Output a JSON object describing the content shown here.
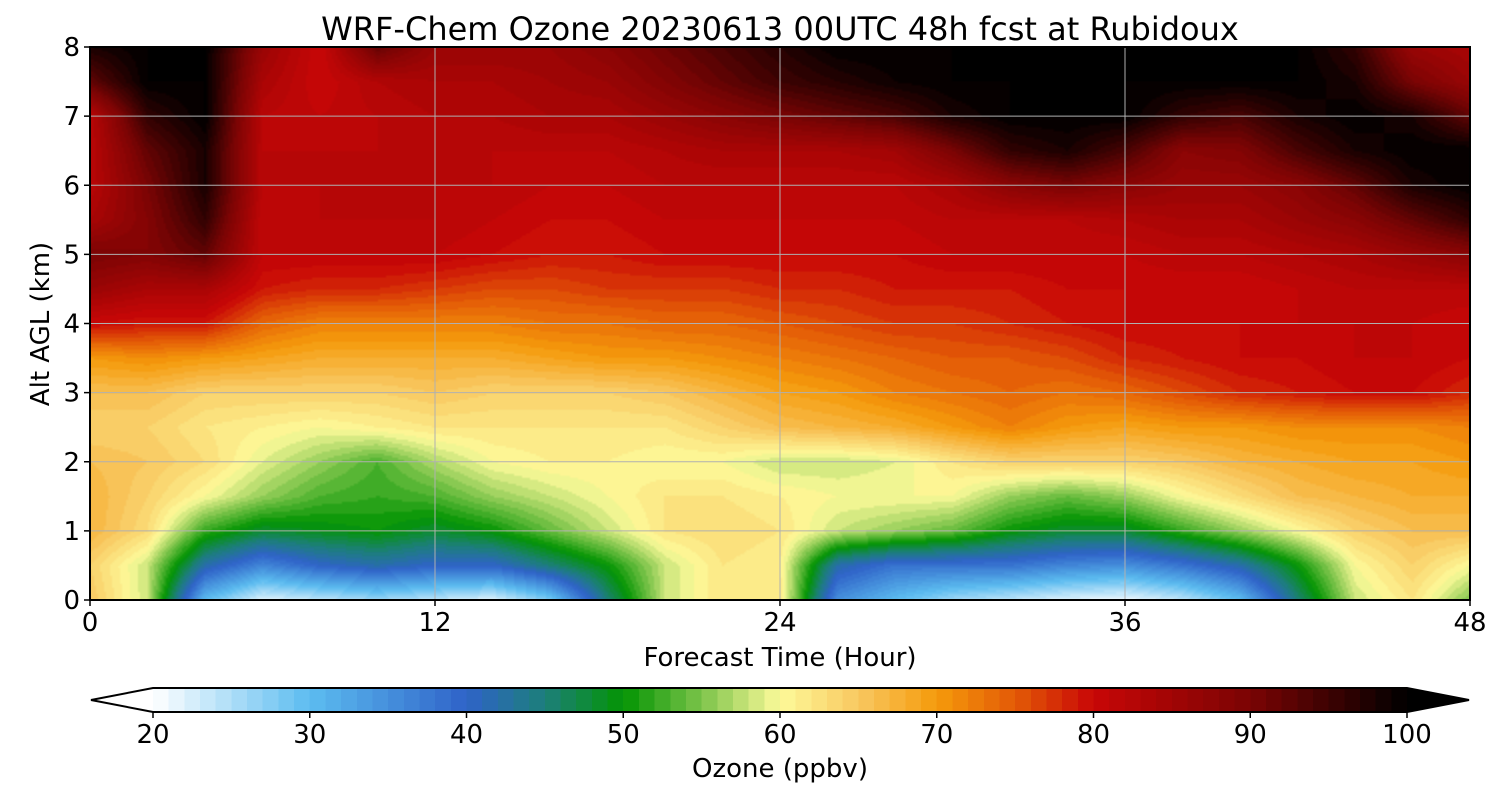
{
  "chart_data": {
    "type": "heatmap",
    "title": "WRF-Chem Ozone  20230613 00UTC 48h fcst at Rubidoux",
    "xlabel": "Forecast Time (Hour)",
    "ylabel": "Alt AGL (km)",
    "xlim": [
      0,
      48
    ],
    "ylim": [
      0,
      8
    ],
    "x_ticks": [
      "0",
      "12",
      "24",
      "36",
      "48"
    ],
    "y_ticks": [
      "0",
      "1",
      "2",
      "3",
      "4",
      "5",
      "6",
      "7",
      "8"
    ],
    "grid": true,
    "colorbar": {
      "label": "Ozone  (ppbv)",
      "range": [
        20,
        100
      ],
      "extend": "both",
      "ticks": [
        "20",
        "30",
        "40",
        "50",
        "60",
        "70",
        "80",
        "90",
        "100"
      ],
      "color_stops": [
        {
          "v": 20,
          "c": "#ffffff"
        },
        {
          "v": 30,
          "c": "#5cbcf0"
        },
        {
          "v": 40,
          "c": "#2f63c8"
        },
        {
          "v": 45,
          "c": "#1c7f7a"
        },
        {
          "v": 50,
          "c": "#039403"
        },
        {
          "v": 55,
          "c": "#7cc44a"
        },
        {
          "v": 60,
          "c": "#fdfa9a"
        },
        {
          "v": 65,
          "c": "#f8c860"
        },
        {
          "v": 70,
          "c": "#f59a0c"
        },
        {
          "v": 75,
          "c": "#e35a06"
        },
        {
          "v": 80,
          "c": "#c80606"
        },
        {
          "v": 90,
          "c": "#7a0404"
        },
        {
          "v": 100,
          "c": "#000000"
        }
      ]
    },
    "x_hours": [
      0,
      2,
      4,
      6,
      8,
      10,
      12,
      14,
      16,
      18,
      20,
      22,
      24,
      26,
      28,
      30,
      32,
      34,
      36,
      38,
      40,
      42,
      44,
      46,
      48
    ],
    "z_km": [
      0,
      0.5,
      1,
      1.5,
      2,
      2.5,
      3,
      3.5,
      4,
      4.5,
      5,
      5.5,
      6,
      6.5,
      7,
      7.5,
      8
    ],
    "values": [
      [
        65,
        58,
        30,
        22,
        24,
        26,
        24,
        22,
        28,
        45,
        58,
        62,
        62,
        35,
        30,
        26,
        24,
        22,
        21,
        24,
        30,
        45,
        58,
        62,
        55
      ],
      [
        64,
        58,
        42,
        36,
        40,
        42,
        40,
        40,
        45,
        50,
        58,
        62,
        61,
        42,
        38,
        38,
        38,
        36,
        35,
        38,
        42,
        50,
        60,
        64,
        60
      ],
      [
        67,
        63,
        52,
        48,
        49,
        50,
        48,
        50,
        54,
        58,
        62,
        63,
        62,
        58,
        56,
        54,
        50,
        48,
        48,
        52,
        56,
        60,
        64,
        66,
        66
      ],
      [
        67,
        64,
        60,
        56,
        53,
        52,
        53,
        56,
        58,
        60,
        62,
        62,
        61,
        60,
        60,
        60,
        56,
        54,
        56,
        60,
        63,
        66,
        67,
        68,
        68
      ],
      [
        66,
        65,
        63,
        59,
        56,
        53,
        57,
        60,
        61,
        61,
        60,
        60,
        58,
        58,
        59,
        62,
        64,
        64,
        64,
        65,
        67,
        68,
        69,
        69,
        70
      ],
      [
        64,
        64,
        62,
        61,
        60,
        61,
        62,
        62,
        62,
        62,
        62,
        64,
        66,
        67,
        68,
        70,
        72,
        70,
        69,
        70,
        70,
        71,
        71,
        71,
        72
      ],
      [
        66,
        66,
        64,
        64,
        64,
        64,
        65,
        64,
        64,
        64,
        65,
        67,
        69,
        70,
        72,
        73,
        74,
        73,
        74,
        76,
        78,
        79,
        80,
        80,
        78
      ],
      [
        70,
        71,
        70,
        69,
        68,
        68,
        68,
        68,
        69,
        70,
        70,
        71,
        72,
        73,
        74,
        75,
        75,
        76,
        78,
        79,
        80,
        80,
        81,
        81,
        80
      ],
      [
        80,
        79,
        79,
        74,
        72,
        72,
        72,
        72,
        73,
        73,
        74,
        74,
        75,
        76,
        77,
        77,
        78,
        79,
        80,
        80,
        80,
        81,
        81,
        81,
        80
      ],
      [
        86,
        84,
        84,
        79,
        78,
        78,
        77,
        76,
        76,
        77,
        77,
        77,
        78,
        78,
        79,
        79,
        79,
        80,
        80,
        80,
        80,
        81,
        82,
        82,
        82
      ],
      [
        90,
        89,
        92,
        81,
        81,
        81,
        81,
        80,
        79,
        79,
        80,
        80,
        80,
        80,
        80,
        81,
        81,
        81,
        81,
        82,
        82,
        83,
        84,
        86,
        88
      ],
      [
        84,
        89,
        96,
        81,
        82,
        82,
        82,
        81,
        80,
        80,
        81,
        81,
        81,
        81,
        81,
        82,
        82,
        82,
        83,
        84,
        84,
        86,
        88,
        92,
        96
      ],
      [
        82,
        90,
        98,
        82,
        82,
        82,
        82,
        82,
        81,
        81,
        82,
        82,
        82,
        82,
        82,
        84,
        88,
        90,
        88,
        86,
        86,
        88,
        92,
        98,
        100
      ],
      [
        82,
        92,
        98,
        82,
        82,
        82,
        82,
        82,
        82,
        82,
        83,
        84,
        84,
        84,
        85,
        90,
        96,
        98,
        94,
        88,
        89,
        94,
        98,
        100,
        100
      ],
      [
        82,
        96,
        100,
        82,
        81,
        82,
        83,
        83,
        84,
        84,
        86,
        88,
        90,
        92,
        94,
        98,
        100,
        100,
        100,
        96,
        94,
        98,
        100,
        98,
        92
      ],
      [
        92,
        100,
        100,
        84,
        80,
        83,
        84,
        84,
        85,
        86,
        89,
        92,
        95,
        97,
        99,
        100,
        100,
        100,
        100,
        100,
        100,
        100,
        98,
        90,
        86
      ],
      [
        98,
        100,
        100,
        86,
        80,
        92,
        86,
        86,
        86,
        88,
        91,
        94,
        97,
        100,
        100,
        100,
        100,
        100,
        100,
        100,
        100,
        100,
        96,
        86,
        84
      ]
    ]
  }
}
